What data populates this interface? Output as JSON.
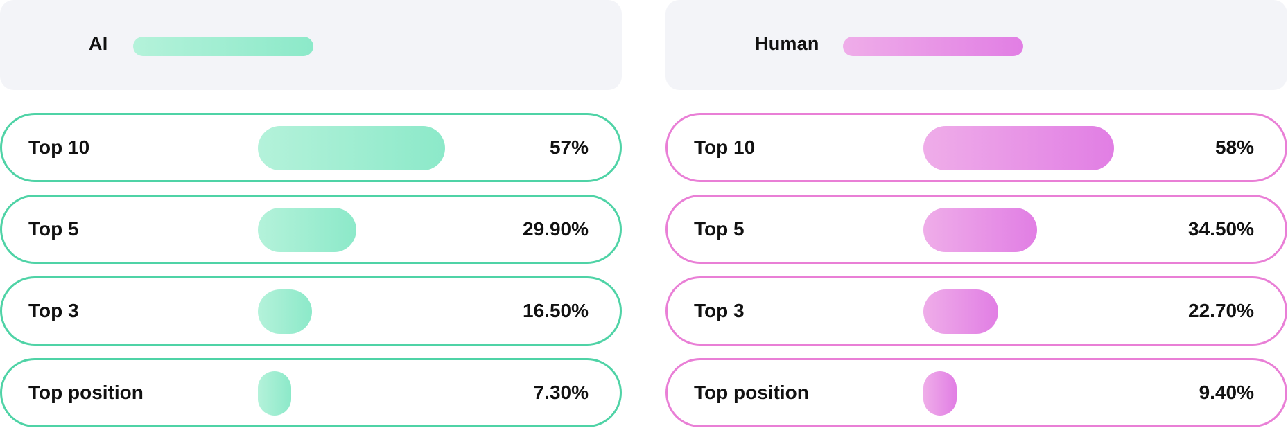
{
  "chart_data": [
    {
      "type": "bar",
      "orientation": "horizontal",
      "legend": "AI",
      "categories": [
        "Top 10",
        "Top 5",
        "Top 3",
        "Top position"
      ],
      "values": [
        57,
        29.9,
        16.5,
        7.3
      ],
      "value_labels": [
        "57%",
        "29.90%",
        "16.50%",
        "7.30%"
      ],
      "xlim": [
        0,
        100
      ],
      "colors": {
        "border": "#4fd3a6",
        "bar_start": "#b4f2da",
        "bar_end": "#8ce9c9"
      }
    },
    {
      "type": "bar",
      "orientation": "horizontal",
      "legend": "Human",
      "categories": [
        "Top 10",
        "Top 5",
        "Top 3",
        "Top position"
      ],
      "values": [
        58,
        34.5,
        22.7,
        9.4
      ],
      "value_labels": [
        "58%",
        "34.50%",
        "22.70%",
        "9.40%"
      ],
      "xlim": [
        0,
        100
      ],
      "colors": {
        "border": "#e97fd6",
        "bar_start": "#efade9",
        "bar_end": "#e17ee4"
      }
    }
  ]
}
